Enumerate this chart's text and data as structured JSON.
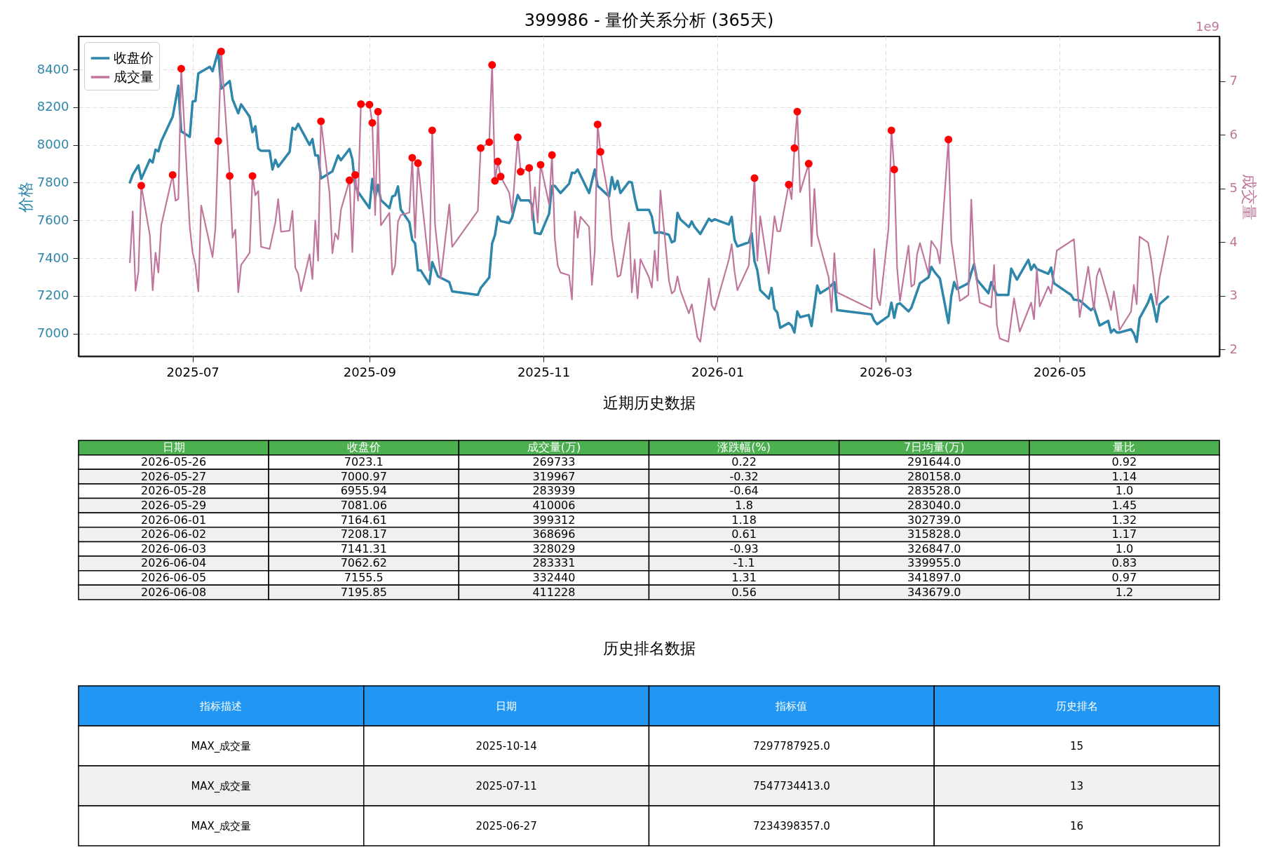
{
  "chart_data": [
    {
      "type": "line",
      "title": "399986 - 量价关系分析 (365天)",
      "ylabel": "价格",
      "y2label": "成交量",
      "annotations": [
        "1e9"
      ],
      "xlim": [
        "2025-05-22",
        "2026-06-26"
      ],
      "xticks": [
        "2025-07",
        "2025-09",
        "2025-11",
        "2026-01",
        "2026-03",
        "2026-05"
      ],
      "ylim": [
        6880,
        8575
      ],
      "yticks": [
        7000,
        7200,
        7400,
        7600,
        7800,
        8000,
        8200,
        8400
      ],
      "y2lim": [
        1.87,
        7.83
      ],
      "y2ticks": [
        2,
        3,
        4,
        5,
        6,
        7
      ],
      "grid": true,
      "legend": "top left",
      "series": [
        {
          "name": "收盘价",
          "type": "line",
          "color": "#2e86ab",
          "x": [
            "2025-06-09",
            "2025-06-10",
            "2025-06-12",
            "2025-06-13",
            "2025-06-16",
            "2025-06-17",
            "2025-06-18",
            "2025-06-19",
            "2025-06-20",
            "2025-06-24",
            "2025-06-26",
            "2025-06-27",
            "2025-06-30",
            "2025-07-01",
            "2025-07-02",
            "2025-07-03",
            "2025-07-07",
            "2025-07-08",
            "2025-07-10",
            "2025-07-11",
            "2025-07-14",
            "2025-07-15",
            "2025-07-17",
            "2025-07-18",
            "2025-07-21",
            "2025-07-22",
            "2025-07-23",
            "2025-07-24",
            "2025-07-25",
            "2025-07-28",
            "2025-07-29",
            "2025-07-30",
            "2025-07-31",
            "2025-08-04",
            "2025-08-05",
            "2025-08-06",
            "2025-08-07",
            "2025-08-11",
            "2025-08-12",
            "2025-08-13",
            "2025-08-14",
            "2025-08-15",
            "2025-08-19",
            "2025-08-21",
            "2025-08-22",
            "2025-08-25",
            "2025-08-26",
            "2025-08-27",
            "2025-08-28",
            "2025-09-01",
            "2025-09-02",
            "2025-09-03",
            "2025-09-04",
            "2025-09-05",
            "2025-09-08",
            "2025-09-09",
            "2025-09-10",
            "2025-09-11",
            "2025-09-12",
            "2025-09-15",
            "2025-09-16",
            "2025-09-17",
            "2025-09-18",
            "2025-09-19",
            "2025-09-22",
            "2025-09-23",
            "2025-09-25",
            "2025-09-29",
            "2025-09-30",
            "2025-10-09",
            "2025-10-10",
            "2025-10-13",
            "2025-10-14",
            "2025-10-15",
            "2025-10-16",
            "2025-10-17",
            "2025-10-20",
            "2025-10-21",
            "2025-10-23",
            "2025-10-24",
            "2025-10-27",
            "2025-10-28",
            "2025-10-29",
            "2025-10-31",
            "2025-11-03",
            "2025-11-04",
            "2025-11-05",
            "2025-11-07",
            "2025-11-10",
            "2025-11-11",
            "2025-11-12",
            "2025-11-13",
            "2025-11-17",
            "2025-11-19",
            "2025-11-20",
            "2025-11-24",
            "2025-11-25",
            "2025-11-26",
            "2025-11-27",
            "2025-11-28",
            "2025-12-01",
            "2025-12-02",
            "2025-12-03",
            "2025-12-04",
            "2025-12-08",
            "2025-12-09",
            "2025-12-10",
            "2025-12-12",
            "2025-12-15",
            "2025-12-16",
            "2025-12-17",
            "2025-12-18",
            "2025-12-19",
            "2025-12-22",
            "2025-12-23",
            "2025-12-24",
            "2025-12-26",
            "2025-12-29",
            "2025-12-30",
            "2025-12-31",
            "2026-01-05",
            "2026-01-06",
            "2026-01-07",
            "2026-01-08",
            "2026-01-12",
            "2026-01-13",
            "2026-01-14",
            "2026-01-15",
            "2026-01-16",
            "2026-01-19",
            "2026-01-20",
            "2026-01-21",
            "2026-01-22",
            "2026-01-23",
            "2026-01-26",
            "2026-01-27",
            "2026-01-28",
            "2026-01-29",
            "2026-01-30",
            "2026-02-02",
            "2026-02-03",
            "2026-02-05",
            "2026-02-06",
            "2026-02-09",
            "2026-02-11",
            "2026-02-12",
            "2026-02-24",
            "2026-02-25",
            "2026-02-26",
            "2026-03-02",
            "2026-03-03",
            "2026-03-04",
            "2026-03-05",
            "2026-03-06",
            "2026-03-09",
            "2026-03-10",
            "2026-03-13",
            "2026-03-16",
            "2026-03-17",
            "2026-03-18",
            "2026-03-20",
            "2026-03-23",
            "2026-03-24",
            "2026-03-25",
            "2026-03-26",
            "2026-03-30",
            "2026-03-31",
            "2026-04-01",
            "2026-04-02",
            "2026-04-06",
            "2026-04-07",
            "2026-04-09",
            "2026-04-13",
            "2026-04-14",
            "2026-04-16",
            "2026-04-20",
            "2026-04-21",
            "2026-04-22",
            "2026-04-23",
            "2026-04-27",
            "2026-04-28",
            "2026-04-29",
            "2026-05-05",
            "2026-05-06",
            "2026-05-08",
            "2026-05-12",
            "2026-05-13",
            "2026-05-15",
            "2026-05-18",
            "2026-05-19",
            "2026-05-20",
            "2026-05-21",
            "2026-05-22",
            "2026-05-26",
            "2026-05-27",
            "2026-05-28",
            "2026-05-29",
            "2026-06-01",
            "2026-06-02",
            "2026-06-03",
            "2026-06-04",
            "2026-06-05",
            "2026-06-08"
          ],
          "values": [
            7801,
            7842,
            7892,
            7820,
            7922,
            7907,
            7975,
            7966,
            8019,
            8149,
            8314,
            8072,
            8043,
            8230,
            8233,
            8379,
            8414,
            8391,
            8497,
            8298,
            8339,
            8242,
            8168,
            8215,
            8149,
            8068,
            8099,
            7981,
            7969,
            7969,
            7870,
            7922,
            7884,
            7963,
            8091,
            8081,
            8112,
            8000,
            8031,
            7944,
            7944,
            7822,
            7860,
            7944,
            7919,
            7979,
            7925,
            7783,
            7752,
            7665,
            7820,
            7720,
            7789,
            7708,
            7665,
            7727,
            7733,
            7780,
            7658,
            7590,
            7497,
            7478,
            7335,
            7335,
            7263,
            7379,
            7304,
            7273,
            7224,
            7205,
            7242,
            7298,
            7478,
            7522,
            7621,
            7596,
            7586,
            7615,
            7735,
            7706,
            7706,
            7683,
            7534,
            7528,
            7636,
            7783,
            7783,
            7745,
            7795,
            7853,
            7851,
            7870,
            7745,
            7870,
            7783,
            7727,
            7830,
            7766,
            7810,
            7745,
            7805,
            7801,
            7720,
            7656,
            7656,
            7621,
            7534,
            7537,
            7524,
            7484,
            7491,
            7640,
            7606,
            7565,
            7594,
            7565,
            7528,
            7609,
            7596,
            7606,
            7578,
            7619,
            7497,
            7462,
            7484,
            7532,
            7385,
            7335,
            7230,
            7186,
            7242,
            7130,
            7112,
            7031,
            7056,
            7043,
            7006,
            7118,
            7087,
            7099,
            7040,
            7255,
            7214,
            7242,
            7273,
            7124,
            7102,
            7068,
            7050,
            7093,
            7164,
            7084,
            7155,
            7161,
            7118,
            7137,
            7267,
            7298,
            7354,
            7329,
            7292,
            7056,
            7199,
            7273,
            7236,
            7267,
            7323,
            7369,
            7286,
            7214,
            7273,
            7205,
            7205,
            7345,
            7286,
            7391,
            7338,
            7366,
            7342,
            7317,
            7350,
            7267,
            7205,
            7180,
            7176,
            7124,
            7139,
            7043,
            7068,
            7006,
            7022,
            7006,
            7006,
            7023,
            7001,
            6956,
            7081,
            7165,
            7208,
            7141,
            7063,
            7156,
            7196
          ]
        },
        {
          "name": "成交量",
          "type": "line",
          "axis": "y2",
          "color": "#c0769c",
          "x": [
            "2025-06-09",
            "2025-06-10",
            "2025-06-11",
            "2025-06-12",
            "2025-06-13",
            "2025-06-16",
            "2025-06-17",
            "2025-06-18",
            "2025-06-19",
            "2025-06-20",
            "2025-06-24",
            "2025-06-25",
            "2025-06-26",
            "2025-06-27",
            "2025-06-30",
            "2025-07-01",
            "2025-07-02",
            "2025-07-03",
            "2025-07-04",
            "2025-07-08",
            "2025-07-09",
            "2025-07-10",
            "2025-07-11",
            "2025-07-14",
            "2025-07-15",
            "2025-07-16",
            "2025-07-17",
            "2025-07-18",
            "2025-07-21",
            "2025-07-22",
            "2025-07-23",
            "2025-07-24",
            "2025-07-25",
            "2025-07-28",
            "2025-07-30",
            "2025-07-31",
            "2025-08-01",
            "2025-08-04",
            "2025-08-05",
            "2025-08-06",
            "2025-08-07",
            "2025-08-08",
            "2025-08-11",
            "2025-08-12",
            "2025-08-13",
            "2025-08-14",
            "2025-08-15",
            "2025-08-18",
            "2025-08-19",
            "2025-08-20",
            "2025-08-21",
            "2025-08-22",
            "2025-08-25",
            "2025-08-26",
            "2025-08-27",
            "2025-08-28",
            "2025-08-29",
            "2025-09-01",
            "2025-09-02",
            "2025-09-03",
            "2025-09-04",
            "2025-09-05",
            "2025-09-08",
            "2025-09-09",
            "2025-09-10",
            "2025-09-11",
            "2025-09-12",
            "2025-09-15",
            "2025-09-16",
            "2025-09-17",
            "2025-09-18",
            "2025-09-22",
            "2025-09-23",
            "2025-09-24",
            "2025-09-26",
            "2025-09-29",
            "2025-09-30",
            "2025-10-09",
            "2025-10-10",
            "2025-10-13",
            "2025-10-14",
            "2025-10-15",
            "2025-10-16",
            "2025-10-17",
            "2025-10-20",
            "2025-10-21",
            "2025-10-23",
            "2025-10-24",
            "2025-10-27",
            "2025-10-28",
            "2025-10-29",
            "2025-10-30",
            "2025-10-31",
            "2025-11-03",
            "2025-11-04",
            "2025-11-05",
            "2025-11-06",
            "2025-11-07",
            "2025-11-10",
            "2025-11-11",
            "2025-11-12",
            "2025-11-13",
            "2025-11-14",
            "2025-11-17",
            "2025-11-18",
            "2025-11-19",
            "2025-11-20",
            "2025-11-21",
            "2025-11-24",
            "2025-11-25",
            "2025-11-27",
            "2025-11-28",
            "2025-12-01",
            "2025-12-02",
            "2025-12-03",
            "2025-12-04",
            "2025-12-05",
            "2025-12-08",
            "2025-12-09",
            "2025-12-10",
            "2025-12-11",
            "2025-12-12",
            "2025-12-15",
            "2025-12-16",
            "2025-12-17",
            "2025-12-18",
            "2025-12-19",
            "2025-12-22",
            "2025-12-23",
            "2025-12-25",
            "2025-12-26",
            "2025-12-29",
            "2025-12-30",
            "2025-12-31",
            "2026-01-05",
            "2026-01-06",
            "2026-01-07",
            "2026-01-08",
            "2026-01-12",
            "2026-01-14",
            "2026-01-15",
            "2026-01-16",
            "2026-01-19",
            "2026-01-21",
            "2026-01-22",
            "2026-01-23",
            "2026-01-26",
            "2026-01-27",
            "2026-01-28",
            "2026-01-29",
            "2026-01-30",
            "2026-02-02",
            "2026-02-03",
            "2026-02-04",
            "2026-02-05",
            "2026-02-09",
            "2026-02-10",
            "2026-02-11",
            "2026-02-12",
            "2026-02-24",
            "2026-02-25",
            "2026-02-26",
            "2026-02-27",
            "2026-03-02",
            "2026-03-03",
            "2026-03-04",
            "2026-03-05",
            "2026-03-06",
            "2026-03-09",
            "2026-03-10",
            "2026-03-11",
            "2026-03-12",
            "2026-03-13",
            "2026-03-16",
            "2026-03-17",
            "2026-03-19",
            "2026-03-20",
            "2026-03-23",
            "2026-03-24",
            "2026-03-27",
            "2026-03-30",
            "2026-03-31",
            "2026-04-01",
            "2026-04-03",
            "2026-04-07",
            "2026-04-08",
            "2026-04-09",
            "2026-04-10",
            "2026-04-13",
            "2026-04-15",
            "2026-04-17",
            "2026-04-21",
            "2026-04-22",
            "2026-04-23",
            "2026-04-24",
            "2026-04-27",
            "2026-04-28",
            "2026-04-30",
            "2026-05-06",
            "2026-05-08",
            "2026-05-11",
            "2026-05-13",
            "2026-05-14",
            "2026-05-15",
            "2026-05-18",
            "2026-05-19",
            "2026-05-20",
            "2026-05-22",
            "2026-05-26",
            "2026-05-27",
            "2026-05-28",
            "2026-05-29",
            "2026-06-01",
            "2026-06-02",
            "2026-06-03",
            "2026-06-04",
            "2026-06-05",
            "2026-06-08"
          ],
          "values": [
            3.62,
            4.57,
            3.09,
            3.45,
            5.05,
            4.13,
            3.1,
            3.8,
            3.43,
            4.31,
            5.25,
            4.77,
            4.8,
            7.23,
            4.28,
            3.8,
            3.58,
            3.08,
            4.68,
            3.72,
            4.26,
            5.88,
            7.55,
            5.23,
            4.08,
            4.23,
            3.06,
            3.57,
            3.8,
            5.23,
            4.87,
            4.95,
            3.91,
            3.87,
            4.36,
            4.8,
            4.19,
            4.21,
            4.58,
            3.52,
            3.41,
            3.08,
            3.77,
            3.31,
            4.4,
            3.65,
            6.25,
            4.91,
            3.79,
            4.16,
            4.05,
            4.6,
            5.15,
            3.81,
            5.25,
            4.77,
            6.57,
            6.56,
            6.22,
            4.5,
            6.43,
            4.31,
            4.54,
            3.39,
            3.56,
            4.38,
            4.5,
            4.55,
            5.57,
            4.08,
            5.47,
            3.47,
            6.08,
            4.32,
            3.32,
            4.7,
            3.91,
            4.58,
            5.75,
            5.86,
            7.3,
            5.14,
            5.5,
            5.22,
            4.92,
            4.54,
            5.95,
            5.31,
            5.38,
            4.41,
            5.02,
            4.36,
            5.44,
            4.7,
            5.62,
            4.06,
            3.56,
            3.43,
            3.38,
            2.93,
            4.57,
            4.08,
            4.47,
            4.28,
            3.2,
            3.84,
            6.19,
            5.68,
            4.78,
            4.08,
            3.35,
            3.38,
            4.36,
            3.06,
            3.67,
            2.95,
            3.68,
            3.34,
            3.15,
            3.84,
            3.28,
            4.96,
            3.28,
            3.04,
            3.09,
            3.36,
            3.1,
            2.67,
            2.84,
            2.22,
            2.14,
            3.32,
            2.82,
            2.73,
            3.67,
            3.96,
            3.45,
            3.1,
            3.56,
            5.19,
            3.65,
            4.48,
            3.41,
            4.48,
            4.2,
            4.2,
            5.07,
            4.8,
            5.75,
            6.43,
            4.93,
            5.46,
            3.92,
            4.99,
            4.13,
            3.34,
            2.69,
            3.79,
            3.06,
            2.75,
            3.87,
            2.97,
            2.82,
            4.26,
            6.08,
            5.35,
            3.52,
            2.9,
            3.93,
            3.17,
            3.21,
            3.77,
            3.98,
            3.41,
            4.02,
            3.86,
            3.6,
            5.91,
            4.02,
            2.9,
            3.01,
            4.79,
            3.62,
            2.87,
            2.78,
            3.57,
            2.45,
            2.2,
            2.14,
            2.95,
            2.33,
            2.87,
            2.56,
            3.49,
            2.8,
            3.17,
            3.04,
            3.84,
            4.05,
            2.6,
            3.54,
            2.73,
            3.36,
            3.51,
            2.95,
            2.73,
            3.08,
            2.36,
            2.7,
            3.2,
            2.84,
            4.1,
            3.99,
            3.69,
            3.28,
            2.83,
            3.32,
            4.11
          ]
        },
        {
          "type": "scatter",
          "axis": "y2",
          "marker": "circle",
          "color": "#ff0000",
          "x": [
            "2025-06-13",
            "2025-06-24",
            "2025-06-27",
            "2025-07-10",
            "2025-07-11",
            "2025-07-14",
            "2025-07-22",
            "2025-08-15",
            "2025-08-25",
            "2025-08-27",
            "2025-08-29",
            "2025-09-01",
            "2025-09-02",
            "2025-09-04",
            "2025-09-16",
            "2025-09-18",
            "2025-09-23",
            "2025-10-10",
            "2025-10-13",
            "2025-10-14",
            "2025-10-15",
            "2025-10-16",
            "2025-10-17",
            "2025-10-23",
            "2025-10-24",
            "2025-10-27",
            "2025-10-31",
            "2025-11-04",
            "2025-11-20",
            "2025-11-21",
            "2026-01-14",
            "2026-01-26",
            "2026-01-28",
            "2026-01-29",
            "2026-02-02",
            "2026-03-03",
            "2026-03-04",
            "2026-03-23"
          ],
          "values": [
            5.05,
            5.25,
            7.23,
            5.88,
            7.55,
            5.23,
            5.23,
            6.25,
            5.15,
            5.25,
            6.57,
            6.56,
            6.22,
            6.43,
            5.57,
            5.47,
            6.08,
            5.75,
            5.86,
            7.3,
            5.14,
            5.5,
            5.22,
            5.95,
            5.31,
            5.38,
            5.44,
            5.62,
            6.19,
            5.68,
            5.19,
            5.07,
            5.75,
            6.43,
            5.46,
            6.08,
            5.35,
            5.91
          ]
        }
      ]
    },
    {
      "type": "other",
      "title": "近期历史数据",
      "color": "#4caf50",
      "categories": [
        "日期",
        "收盘价",
        "成交量(万)",
        "涨跌幅(%)",
        "7日均量(万)",
        "量比"
      ],
      "cell_labels": [
        [
          "2026-05-26",
          "7023.1",
          "269733",
          "0.22",
          "291644.0",
          "0.92"
        ],
        [
          "2026-05-27",
          "7000.97",
          "319967",
          "-0.32",
          "280158.0",
          "1.14"
        ],
        [
          "2026-05-28",
          "6955.94",
          "283939",
          "-0.64",
          "283528.0",
          "1.0"
        ],
        [
          "2026-05-29",
          "7081.06",
          "410006",
          "1.8",
          "283040.0",
          "1.45"
        ],
        [
          "2026-06-01",
          "7164.61",
          "399312",
          "1.18",
          "302739.0",
          "1.32"
        ],
        [
          "2026-06-02",
          "7208.17",
          "368696",
          "0.61",
          "315828.0",
          "1.17"
        ],
        [
          "2026-06-03",
          "7141.31",
          "328029",
          "-0.93",
          "326847.0",
          "1.0"
        ],
        [
          "2026-06-04",
          "7062.62",
          "283331",
          "-1.1",
          "339955.0",
          "0.83"
        ],
        [
          "2026-06-05",
          "7155.5",
          "332440",
          "1.31",
          "341897.0",
          "0.97"
        ],
        [
          "2026-06-08",
          "7195.85",
          "411228",
          "0.56",
          "343679.0",
          "1.2"
        ]
      ]
    },
    {
      "type": "other",
      "title": "历史排名数据",
      "color": "#2196f3",
      "categories": [
        "指标描述",
        "日期",
        "指标值",
        "历史排名"
      ],
      "cell_labels": [
        [
          "MAX_成交量",
          "2025-10-14",
          "7297787925.0",
          "15"
        ],
        [
          "MAX_成交量",
          "2025-07-11",
          "7547734413.0",
          "13"
        ],
        [
          "MAX_成交量",
          "2025-06-27",
          "7234398357.0",
          "16"
        ]
      ]
    }
  ]
}
